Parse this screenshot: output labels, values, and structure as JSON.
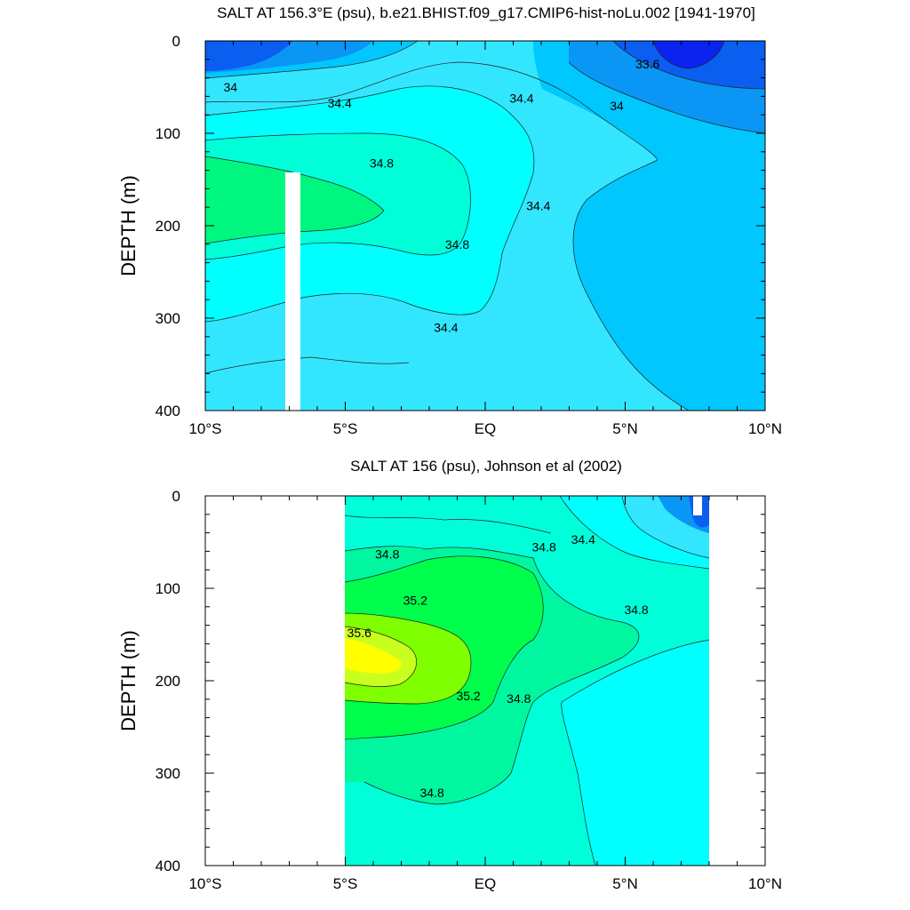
{
  "chart_data": [
    {
      "type": "heatmap",
      "title": "SALT AT 156.3°E (psu), b.e21.BHIST.f09_g17.CMIP6-hist-noLu.002 [1941-1970]",
      "ylabel": "DEPTH (m)",
      "xlim": [
        -10,
        10
      ],
      "ylim": [
        400,
        0
      ],
      "x_ticks": [
        -10,
        -5,
        0,
        5,
        10
      ],
      "x_tick_labels": [
        "10°S",
        "5°S",
        "EQ",
        "5°N",
        "10°N"
      ],
      "y_ticks": [
        0,
        100,
        200,
        300,
        400
      ],
      "y_tick_labels": [
        "0",
        "100",
        "200",
        "300",
        "400"
      ],
      "contour_interval": 0.2,
      "contour_labels": [
        {
          "text": "33.6",
          "x": 5.8,
          "y": 30
        },
        {
          "text": "34",
          "x": -9.1,
          "y": 55
        },
        {
          "text": "34.4",
          "x": -5.2,
          "y": 72
        },
        {
          "text": "34.4",
          "x": 1.3,
          "y": 67
        },
        {
          "text": "34",
          "x": 4.7,
          "y": 75
        },
        {
          "text": "34.8",
          "x": -3.7,
          "y": 137
        },
        {
          "text": "34.4",
          "x": 1.9,
          "y": 183
        },
        {
          "text": "34.8",
          "x": -1.0,
          "y": 225
        },
        {
          "text": "34.4",
          "x": -1.4,
          "y": 315
        }
      ],
      "colors": {
        "33.6": "#0a23f0",
        "33.8": "#0a5ef0",
        "34.0": "#0a96f5",
        "34.2": "#00c8ff",
        "34.4": "#33e6ff",
        "34.6": "#00ffff",
        "34.8": "#00ffd9",
        "35.0": "#00f77f"
      }
    },
    {
      "type": "heatmap",
      "title": "SALT AT 156 (psu), Johnson et al (2002)",
      "ylabel": "DEPTH (m)",
      "xlim": [
        -10,
        10
      ],
      "ylim": [
        400,
        0
      ],
      "data_extent_x": [
        -5,
        8
      ],
      "x_ticks": [
        -10,
        -5,
        0,
        5,
        10
      ],
      "x_tick_labels": [
        "10°S",
        "5°S",
        "EQ",
        "5°N",
        "10°N"
      ],
      "y_ticks": [
        0,
        100,
        200,
        300,
        400
      ],
      "y_tick_labels": [
        "0",
        "100",
        "200",
        "300",
        "400"
      ],
      "contour_interval": 0.2,
      "contour_labels": [
        {
          "text": "34.8",
          "x": -3.5,
          "y": 68
        },
        {
          "text": "35.2",
          "x": -2.5,
          "y": 118
        },
        {
          "text": "35.6",
          "x": -4.5,
          "y": 153
        },
        {
          "text": "34.8",
          "x": 2.1,
          "y": 60
        },
        {
          "text": "34.4",
          "x": 3.5,
          "y": 52
        },
        {
          "text": "34.8",
          "x": 5.4,
          "y": 128
        },
        {
          "text": "35.2",
          "x": -0.6,
          "y": 221
        },
        {
          "text": "34.8",
          "x": 1.2,
          "y": 224
        },
        {
          "text": "34.8",
          "x": -1.9,
          "y": 326
        }
      ],
      "colors": {
        "34.0": "#0a5ef0",
        "34.2": "#0a96f5",
        "34.4": "#33e6ff",
        "34.6": "#00ffff",
        "34.8": "#00ffd9",
        "35.0": "#00f7a0",
        "35.2": "#00ff4c",
        "35.4": "#7fff00",
        "35.6": "#c8ff1e",
        "35.8": "#ffff00"
      }
    }
  ]
}
